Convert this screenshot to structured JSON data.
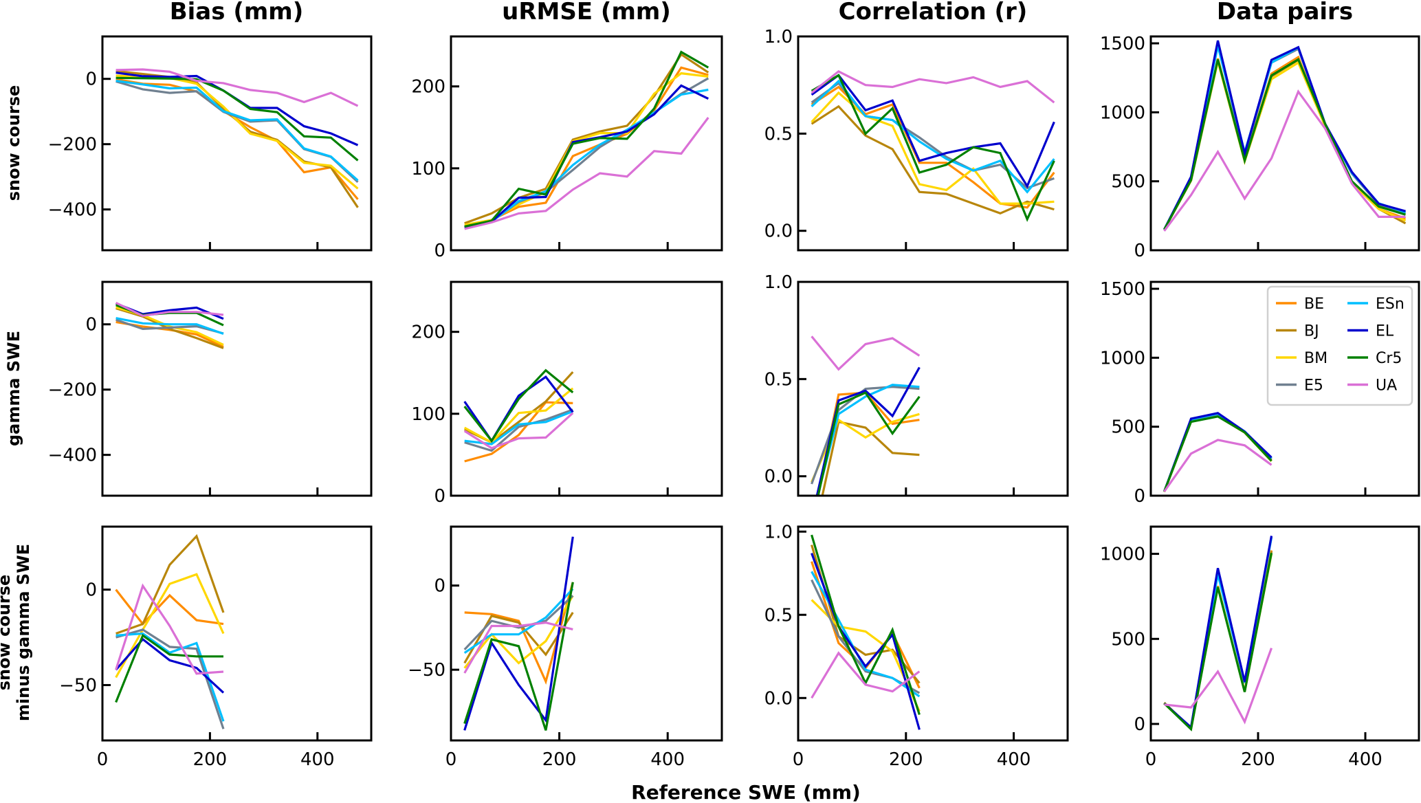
{
  "chart_data": {
    "type": "line",
    "xlabel": "Reference SWE (mm)",
    "column_titles": [
      "Bias (mm)",
      "uRMSE (mm)",
      "Correlation (r)",
      "Data pairs"
    ],
    "row_labels": [
      [
        "snow course"
      ],
      [
        "gamma SWE"
      ],
      [
        "snow course",
        "minus gamma SWE"
      ]
    ],
    "x": [
      25,
      75,
      125,
      175,
      225,
      275,
      325,
      375,
      425,
      475
    ],
    "xlim": [
      0,
      500
    ],
    "xticks": [
      0,
      200,
      400
    ],
    "grid": false,
    "legend": {
      "placement": "upper-right of row 2 Data pairs panel",
      "columns": 2,
      "entries": [
        {
          "name": "BE",
          "color": "#ff8c00"
        },
        {
          "name": "BJ",
          "color": "#b8860b"
        },
        {
          "name": "BM",
          "color": "#ffd700"
        },
        {
          "name": "E5",
          "color": "#708090"
        },
        {
          "name": "ESn",
          "color": "#00bfff"
        },
        {
          "name": "EL",
          "color": "#0000cd"
        },
        {
          "name": "Cr5",
          "color": "#008000"
        },
        {
          "name": "UA",
          "color": "#da70d6"
        }
      ]
    },
    "draw_order": [
      "BE",
      "BJ",
      "BM",
      "E5",
      "ESn",
      "EL",
      "Cr5",
      "UA"
    ],
    "panels": [
      {
        "row": 0,
        "col": 0,
        "metric": "Bias (mm)",
        "row_label": "snow course",
        "ylim": [
          -525,
          130
        ],
        "yticks": [
          0,
          -200,
          -400
        ],
        "ytick_labels": [
          "0",
          "−200",
          "−400"
        ],
        "series": {
          "BE": [
            -1,
            -15,
            -18,
            -39,
            -99,
            -148,
            -190,
            -286,
            -271,
            -369
          ],
          "BJ": [
            24,
            15,
            6,
            -11,
            -92,
            -162,
            -187,
            -253,
            -271,
            -394
          ],
          "BM": [
            10,
            6,
            3,
            -15,
            -85,
            -168,
            -190,
            -257,
            -266,
            -336
          ],
          "E5": [
            -8,
            -32,
            -43,
            -38,
            -101,
            -131,
            -127,
            -215,
            -239,
            -316
          ],
          "ESn": [
            -6,
            -17,
            -29,
            -27,
            -99,
            -127,
            -124,
            -213,
            -238,
            -311
          ],
          "EL": [
            19,
            8,
            6,
            9,
            -36,
            -89,
            -89,
            -145,
            -167,
            -203
          ],
          "Cr5": [
            3,
            2,
            1,
            -1,
            -36,
            -92,
            -102,
            -176,
            -180,
            -250
          ],
          "UA": [
            27,
            29,
            22,
            -6,
            -13,
            -34,
            -43,
            -71,
            -43,
            -83
          ]
        }
      },
      {
        "row": 0,
        "col": 1,
        "metric": "uRMSE (mm)",
        "ylim": [
          0,
          261
        ],
        "yticks": [
          0,
          100,
          200
        ],
        "ytick_labels": [
          "0",
          "100",
          "200"
        ],
        "series": {
          "BE": [
            29,
            37,
            53,
            58,
            115,
            129,
            142,
            171,
            223,
            214
          ],
          "BJ": [
            33,
            45,
            64,
            75,
            135,
            145,
            152,
            188,
            239,
            217
          ],
          "BM": [
            31,
            37,
            56,
            71,
            133,
            143,
            143,
            191,
            216,
            212
          ],
          "E5": [
            28,
            35,
            59,
            71,
            98,
            126,
            146,
            168,
            191,
            210
          ],
          "ESn": [
            28,
            35,
            60,
            72,
            104,
            129,
            147,
            168,
            190,
            196
          ],
          "EL": [
            28,
            35,
            64,
            65,
            132,
            138,
            145,
            166,
            201,
            185
          ],
          "Cr5": [
            29,
            36,
            75,
            68,
            130,
            137,
            136,
            173,
            242,
            223
          ],
          "UA": [
            26,
            34,
            45,
            48,
            74,
            94,
            90,
            121,
            118,
            162
          ]
        }
      },
      {
        "row": 0,
        "col": 2,
        "metric": "Correlation (r)",
        "ylim": [
          -0.1,
          1.0
        ],
        "yticks": [
          0.0,
          0.5,
          1.0
        ],
        "ytick_labels": [
          "0.0",
          "0.5",
          "1.0"
        ],
        "series": {
          "BE": [
            0.65,
            0.74,
            0.6,
            0.65,
            0.35,
            0.35,
            0.25,
            0.14,
            0.12,
            0.3
          ],
          "BJ": [
            0.55,
            0.64,
            0.49,
            0.42,
            0.2,
            0.19,
            0.14,
            0.09,
            0.15,
            0.11
          ],
          "BM": [
            0.56,
            0.71,
            0.59,
            0.54,
            0.24,
            0.21,
            0.32,
            0.14,
            0.14,
            0.15
          ],
          "E5": [
            0.66,
            0.76,
            0.59,
            0.57,
            0.48,
            0.38,
            0.31,
            0.34,
            0.22,
            0.27
          ],
          "ESn": [
            0.64,
            0.77,
            0.59,
            0.57,
            0.46,
            0.37,
            0.31,
            0.36,
            0.2,
            0.37
          ],
          "EL": [
            0.7,
            0.8,
            0.62,
            0.67,
            0.36,
            0.4,
            0.43,
            0.45,
            0.23,
            0.56
          ],
          "Cr5": [
            0.72,
            0.8,
            0.5,
            0.63,
            0.3,
            0.34,
            0.43,
            0.4,
            0.06,
            0.36
          ],
          "UA": [
            0.71,
            0.82,
            0.75,
            0.74,
            0.78,
            0.76,
            0.79,
            0.74,
            0.77,
            0.66
          ]
        }
      },
      {
        "row": 0,
        "col": 3,
        "metric": "Data pairs",
        "ylim": [
          0,
          1550
        ],
        "yticks": [
          0,
          500,
          1000,
          1500
        ],
        "ytick_labels": [
          "0",
          "500",
          "1000",
          "1500"
        ],
        "series": {
          "BE": [
            150,
            510,
            1390,
            650,
            1280,
            1400,
            900,
            490,
            300,
            230
          ],
          "BJ": [
            150,
            505,
            1380,
            650,
            1260,
            1380,
            900,
            490,
            300,
            195
          ],
          "BM": [
            150,
            505,
            1370,
            645,
            1240,
            1360,
            900,
            490,
            300,
            215
          ],
          "E5": [
            150,
            525,
            1490,
            690,
            1360,
            1460,
            917,
            555,
            330,
            270
          ],
          "ESn": [
            150,
            530,
            1480,
            710,
            1360,
            1470,
            917,
            560,
            340,
            275
          ],
          "EL": [
            150,
            533,
            1520,
            700,
            1380,
            1472,
            917,
            567,
            337,
            283
          ],
          "Cr5": [
            150,
            508,
            1383,
            650,
            1267,
            1383,
            917,
            500,
            317,
            258
          ],
          "UA": [
            140,
            400,
            713,
            375,
            667,
            1150,
            883,
            483,
            242,
            242
          ]
        }
      },
      {
        "row": 1,
        "col": 0,
        "metric": "Bias (mm)",
        "row_label": "gamma SWE",
        "ylim": [
          -525,
          130
        ],
        "yticks": [
          0,
          -200,
          -400
        ],
        "ytick_labels": [
          "0",
          "−200",
          "−400"
        ],
        "series": {
          "BE": [
            7,
            -7,
            -17,
            -31,
            -69
          ],
          "BJ": [
            49,
            24,
            -14,
            -42,
            -73
          ],
          "BM": [
            52,
            28,
            -7,
            -24,
            -63
          ],
          "E5": [
            14,
            -14,
            -10,
            -6,
            -28
          ],
          "ESn": [
            19,
            3,
            0,
            0,
            -29
          ],
          "EL": [
            64,
            31,
            43,
            51,
            17
          ],
          "Cr5": [
            59,
            28,
            35,
            35,
            -3
          ],
          "UA": [
            66,
            26,
            38,
            38,
            29
          ]
        }
      },
      {
        "row": 1,
        "col": 1,
        "metric": "uRMSE (mm)",
        "ylim": [
          0,
          261
        ],
        "yticks": [
          0,
          100,
          200
        ],
        "ytick_labels": [
          "0",
          "100",
          "200"
        ],
        "series": {
          "BE": [
            42,
            51,
            74,
            114,
            113
          ],
          "BJ": [
            81,
            65,
            90,
            115,
            151
          ],
          "BM": [
            83,
            65,
            101,
            104,
            131
          ],
          "E5": [
            65,
            55,
            84,
            93,
            105
          ],
          "ESn": [
            67,
            63,
            87,
            90,
            103
          ],
          "EL": [
            115,
            67,
            122,
            145,
            102
          ],
          "Cr5": [
            109,
            67,
            118,
            153,
            126
          ],
          "UA": [
            79,
            58,
            70,
            71,
            101
          ]
        }
      },
      {
        "row": 1,
        "col": 2,
        "metric": "Correlation (r)",
        "ylim": [
          -0.1,
          1.0
        ],
        "yticks": [
          0.0,
          0.5,
          1.0
        ],
        "ytick_labels": [
          "0.0",
          "0.5",
          "1.0"
        ],
        "series": {
          "BE": [
            -0.25,
            0.42,
            0.43,
            0.27,
            0.29
          ],
          "BJ": [
            -0.35,
            0.28,
            0.25,
            0.12,
            0.11
          ],
          "BM": [
            -0.03,
            0.29,
            0.2,
            0.28,
            0.32
          ],
          "E5": [
            -0.04,
            0.34,
            0.45,
            0.46,
            0.45
          ],
          "ESn": [
            -0.22,
            0.32,
            0.41,
            0.47,
            0.46
          ],
          "EL": [
            -0.22,
            0.39,
            0.44,
            0.31,
            0.56
          ],
          "Cr5": [
            -0.25,
            0.37,
            0.43,
            0.22,
            0.41
          ],
          "UA": [
            0.72,
            0.55,
            0.68,
            0.71,
            0.62
          ]
        }
      },
      {
        "row": 1,
        "col": 3,
        "metric": "Data pairs",
        "ylim": [
          0,
          1550
        ],
        "yticks": [
          0,
          500,
          1000,
          1500
        ],
        "ytick_labels": [
          "0",
          "500",
          "1000",
          "1500"
        ],
        "series": {
          "BE": [
            30,
            540,
            578,
            460,
            255
          ],
          "BJ": [
            28,
            538,
            576,
            458,
            250
          ],
          "BM": [
            28,
            538,
            576,
            458,
            250
          ],
          "E5": [
            30,
            548,
            590,
            462,
            265
          ],
          "ESn": [
            30,
            552,
            594,
            466,
            270
          ],
          "EL": [
            30,
            558,
            599,
            464,
            277
          ],
          "Cr5": [
            30,
            536,
            574,
            459,
            252
          ],
          "UA": [
            30,
            305,
            404,
            365,
            223
          ]
        }
      },
      {
        "row": 2,
        "col": 0,
        "metric": "Bias (mm)",
        "row_label": "snow course minus gamma SWE",
        "ylim": [
          -79,
          33
        ],
        "yticks": [
          0,
          -50
        ],
        "ytick_labels": [
          "0",
          "−50"
        ],
        "series": {
          "BE": [
            0,
            -18,
            -3,
            -16,
            -18
          ],
          "BJ": [
            -23,
            -18,
            13,
            28,
            -12
          ],
          "BM": [
            -46,
            -21,
            3,
            8,
            -23
          ],
          "E5": [
            -25,
            -21,
            -30,
            -31,
            -73
          ],
          "ESn": [
            -24,
            -23,
            -33,
            -28,
            -69
          ],
          "EL": [
            -42,
            -26,
            -37,
            -41,
            -54
          ],
          "Cr5": [
            -59,
            -24,
            -34,
            -35,
            -35
          ],
          "UA": [
            -42,
            2,
            -19,
            -44,
            -43
          ]
        }
      },
      {
        "row": 2,
        "col": 1,
        "metric": "uRMSE (mm)",
        "ylim": [
          -92,
          35
        ],
        "yticks": [
          0,
          -50
        ],
        "ytick_labels": [
          "0",
          "−50"
        ],
        "series": {
          "BE": [
            -16,
            -17,
            -21,
            -57,
            2
          ],
          "BJ": [
            -46,
            -18,
            -22,
            -41,
            -16
          ],
          "BM": [
            -49,
            -29,
            -46,
            -33,
            -6
          ],
          "E5": [
            -38,
            -21,
            -25,
            -21,
            -6
          ],
          "ESn": [
            -40,
            -29,
            -29,
            -19,
            -2
          ],
          "EL": [
            -86,
            -34,
            -59,
            -80,
            29
          ],
          "Cr5": [
            -82,
            -32,
            -36,
            -86,
            2
          ],
          "UA": [
            -52,
            -24,
            -24,
            -22,
            -26
          ]
        }
      },
      {
        "row": 2,
        "col": 2,
        "metric": "Correlation (r)",
        "ylim": [
          -0.255,
          1.03
        ],
        "yticks": [
          0.0,
          0.5,
          1.0
        ],
        "ytick_labels": [
          "0.0",
          "0.5",
          "1.0"
        ],
        "series": {
          "BE": [
            0.82,
            0.33,
            0.18,
            0.39,
            0.06
          ],
          "BJ": [
            0.92,
            0.37,
            0.26,
            0.29,
            0.09
          ],
          "BM": [
            0.59,
            0.43,
            0.4,
            0.28,
            -0.08
          ],
          "E5": [
            0.71,
            0.37,
            0.16,
            0.12,
            0.03
          ],
          "ESn": [
            0.76,
            0.47,
            0.17,
            0.12,
            0.01
          ],
          "EL": [
            0.87,
            0.43,
            0.19,
            0.38,
            -0.19
          ],
          "Cr5": [
            0.98,
            0.43,
            0.09,
            0.41,
            -0.1
          ],
          "UA": [
            0.0,
            0.27,
            0.08,
            0.04,
            0.16
          ]
        }
      },
      {
        "row": 2,
        "col": 3,
        "metric": "Data pairs",
        "ylim": [
          -97,
          1160
        ],
        "yticks": [
          0,
          500,
          1000
        ],
        "ytick_labels": [
          "0",
          "500",
          "1000"
        ],
        "series": {
          "BE": [
            125,
            -25,
            810,
            190,
            1020
          ],
          "BJ": [
            125,
            -25,
            810,
            190,
            1015
          ],
          "BM": [
            120,
            -28,
            805,
            190,
            1000
          ],
          "E5": [
            121,
            -22,
            900,
            240,
            1100
          ],
          "ESn": [
            121,
            -22,
            880,
            245,
            1095
          ],
          "EL": [
            121,
            -20,
            916,
            248,
            1106
          ],
          "Cr5": [
            121,
            -31,
            804,
            188,
            1005
          ],
          "UA": [
            114,
            97,
            308,
            13,
            446
          ]
        }
      }
    ]
  }
}
